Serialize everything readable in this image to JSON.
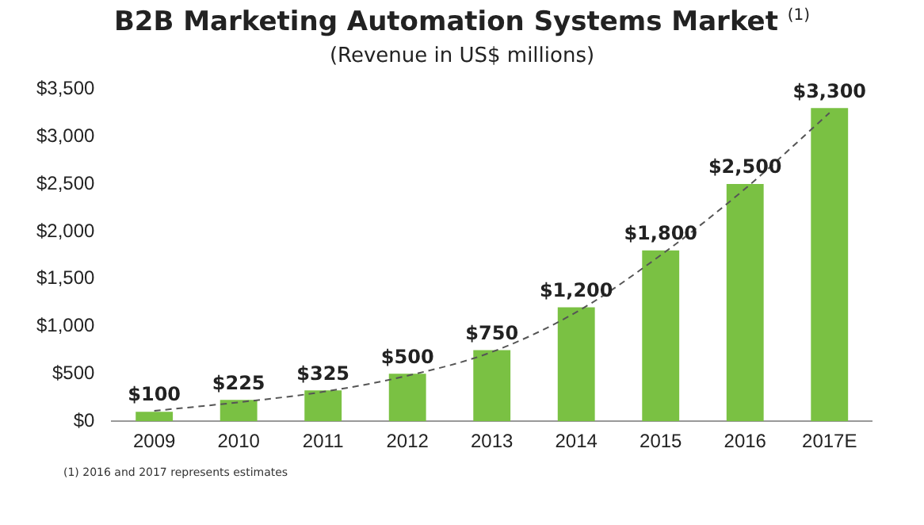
{
  "chart_data": {
    "type": "bar",
    "title": "B2B Marketing Automation Systems Market $^{(1)}$",
    "subtitle": "(Revenue in US$ millions)",
    "categories": [
      "2009",
      "2010",
      "2011",
      "2012",
      "2013",
      "2014",
      "2015",
      "2016",
      "2017E"
    ],
    "series": [
      {
        "color": "#7ac143",
        "values": [
          100,
          225,
          325,
          500,
          750,
          1200,
          1800,
          2500,
          3300
        ],
        "value_labels": [
          "$100",
          "$225",
          "$325",
          "$500",
          "$750",
          "$1,200",
          "$1,800",
          "$2,500",
          "$3,300"
        ]
      },
      {
        "type": "line",
        "color": "#555555",
        "values": [
          110,
          200,
          310,
          480,
          730,
          1150,
          1750,
          2450,
          3250
        ]
      }
    ],
    "ylim": [
      0,
      3500
    ],
    "yticks": [
      {
        "value": 0,
        "label": "$0"
      },
      {
        "value": 500,
        "label": "$500"
      },
      {
        "value": 1000,
        "label": "$1,000"
      },
      {
        "value": 1500,
        "label": "$1,500"
      },
      {
        "value": 2000,
        "label": "$2,000"
      },
      {
        "value": 2500,
        "label": "$2,500"
      },
      {
        "value": 3000,
        "label": "$3,000"
      },
      {
        "value": 3500,
        "label": "$3,500"
      }
    ],
    "grid": false,
    "legend": false,
    "marker": "none",
    "line_style": "dashed",
    "annotations": [
      "(1)   2016 and 2017 represents estimates"
    ]
  }
}
